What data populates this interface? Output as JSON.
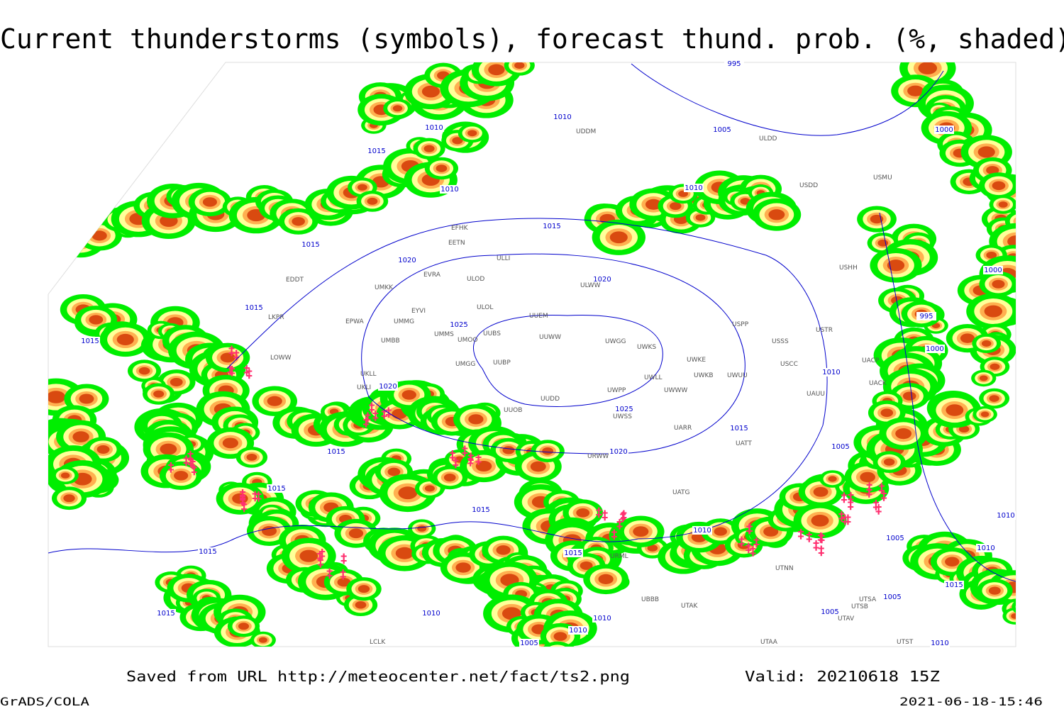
{
  "header": {
    "title": "Current thunderstorms (symbols), forecast thund. prob. (%, shaded)"
  },
  "footer": {
    "source": "Saved from URL http://meteocenter.net/fact/ts2.png",
    "valid": "Valid: 20210618 15Z",
    "software": "GrADS/COLA",
    "timestamp": "2021-06-18-15:46"
  },
  "isobar_labels": [
    "995",
    "1010",
    "1010",
    "1005",
    "1015",
    "1010",
    "1010",
    "1015",
    "1015",
    "1020",
    "1020",
    "1015",
    "1015",
    "995",
    "1000",
    "1000",
    "1000",
    "1025",
    "1020",
    "1025",
    "1020",
    "1010",
    "1015",
    "1005",
    "1015",
    "1015",
    "1015",
    "1010",
    "1005",
    "1010",
    "1010",
    "1015",
    "1015",
    "1015",
    "1005",
    "1005",
    "1010",
    "1010",
    "1010",
    "1015",
    "1005",
    "1010"
  ],
  "stations": [
    "UDDM",
    "ULDD",
    "USDD",
    "USMU",
    "EFHK",
    "EETN",
    "ULLI",
    "EVRA",
    "ULOD",
    "ULWW",
    "EDDT",
    "UMKK",
    "EYVI",
    "ULOL",
    "UUEM",
    "EPWA",
    "UMMS",
    "UMOO",
    "UUBS",
    "UUWW",
    "UWGG",
    "UWKS",
    "UMMG",
    "UMBB",
    "UUBP",
    "UMGG",
    "UWKE",
    "UWKB",
    "UWUU",
    "UWLL",
    "UWWW",
    "UUDD",
    "UWPP",
    "USSS",
    "USCC",
    "UUOB",
    "UWSS",
    "UARR",
    "URWW",
    "UATT",
    "USHH",
    "USTR",
    "UACP",
    "UACK",
    "UAUU",
    "UKLL",
    "UKLI",
    "LOWW",
    "LKPR",
    "UTNN",
    "UTAK",
    "UBBB",
    "URML",
    "UTSA",
    "UTSB",
    "UTAV",
    "UTAA",
    "UTST",
    "LCLK",
    "USPP",
    "UATG"
  ]
}
